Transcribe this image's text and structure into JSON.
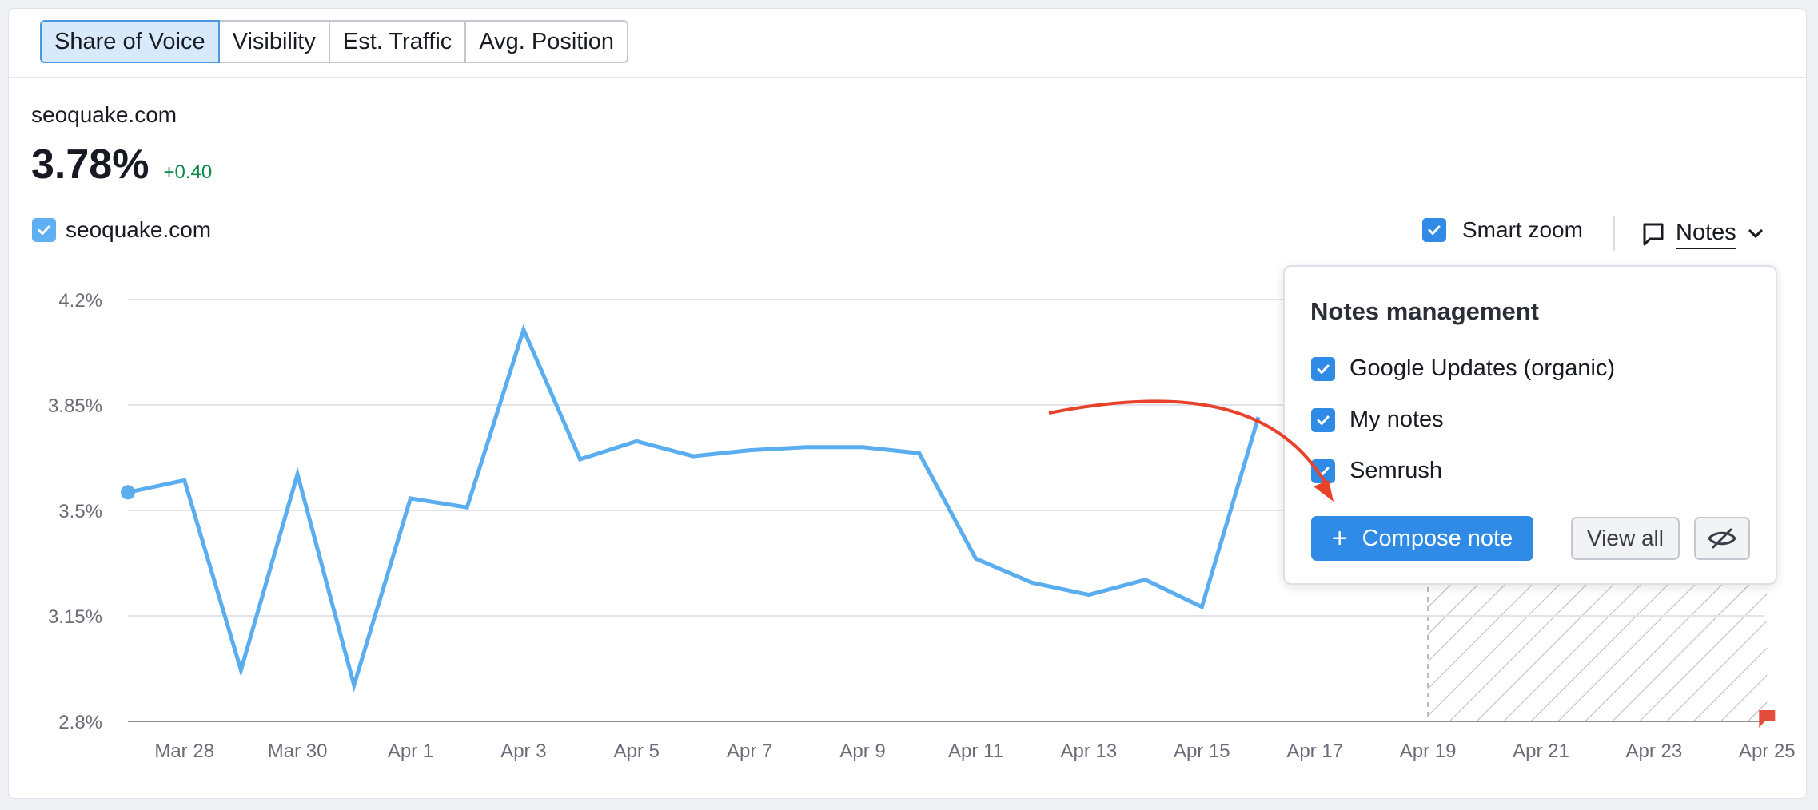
{
  "tabs": [
    {
      "label": "Share of Voice",
      "active": true
    },
    {
      "label": "Visibility",
      "active": false
    },
    {
      "label": "Est. Traffic",
      "active": false
    },
    {
      "label": "Avg. Position",
      "active": false
    }
  ],
  "summary": {
    "domain": "seoquake.com",
    "value": "3.78%",
    "delta": "+0.40"
  },
  "legend": {
    "domain": "seoquake.com",
    "checked": true
  },
  "controls": {
    "smart_zoom_label": "Smart zoom",
    "smart_zoom_checked": true,
    "notes_label": "Notes"
  },
  "notes_popover": {
    "title": "Notes management",
    "items": [
      {
        "label": "Google Updates (organic)",
        "checked": true
      },
      {
        "label": "My notes",
        "checked": true
      },
      {
        "label": "Semrush",
        "checked": true
      }
    ],
    "compose_label": "Compose note",
    "view_all_label": "View all"
  },
  "colors": {
    "accent": "#2f8be6",
    "series": "#5aaef0",
    "delta_positive": "#0b8a4b",
    "annotation_arrow": "#e8432a",
    "note_flag": "#e34b3a"
  },
  "chart_data": {
    "type": "line",
    "y_ticks": [
      "4.2%",
      "3.85%",
      "3.5%",
      "3.15%",
      "2.8%"
    ],
    "ylim": [
      2.8,
      4.2
    ],
    "x_ticks": [
      "Mar 28",
      "Mar 30",
      "Apr 1",
      "Apr 3",
      "Apr 5",
      "Apr 7",
      "Apr 9",
      "Apr 11",
      "Apr 13",
      "Apr 15",
      "Apr 17",
      "Apr 19",
      "Apr 21",
      "Apr 23",
      "Apr 25"
    ],
    "series": [
      {
        "x": [
          "Mar 27",
          "Mar 28",
          "Mar 29",
          "Mar 30",
          "Mar 31",
          "Apr 1",
          "Apr 2",
          "Apr 3",
          "Apr 4",
          "Apr 5",
          "Apr 6",
          "Apr 7",
          "Apr 8",
          "Apr 9",
          "Apr 10",
          "Apr 11",
          "Apr 12",
          "Apr 13",
          "Apr 14",
          "Apr 15",
          "Apr 16"
        ],
        "values": [
          3.56,
          3.6,
          2.97,
          3.62,
          2.92,
          3.54,
          3.51,
          4.1,
          3.67,
          3.73,
          3.68,
          3.7,
          3.71,
          3.71,
          3.69,
          3.34,
          3.26,
          3.22,
          3.27,
          3.18,
          3.81
        ]
      }
    ],
    "grid": true,
    "shaded_range": [
      "Apr 19",
      "Apr 25"
    ],
    "note_markers": [
      "Apr 25"
    ]
  }
}
